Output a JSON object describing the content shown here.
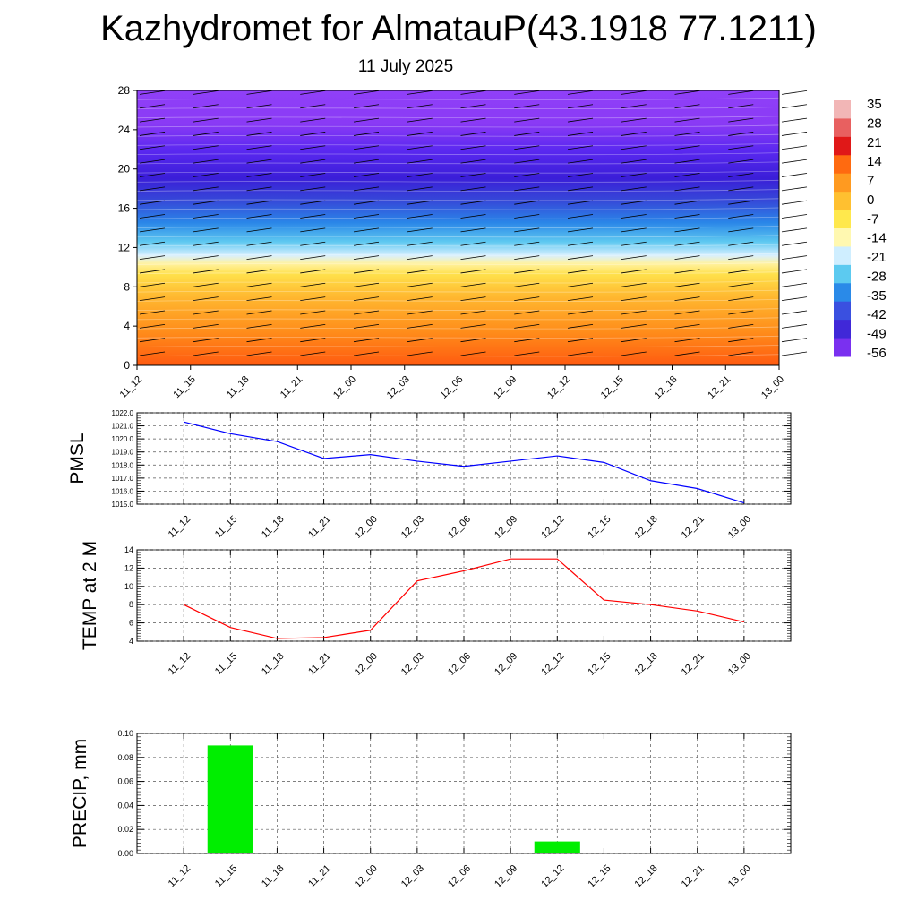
{
  "title": "Kazhydromet for AlmatauP(43.1918 77.1211)",
  "subtitle": "11 July 2025",
  "colorbar": {
    "labels": [
      "35",
      "28",
      "21",
      "14",
      "7",
      "0",
      "-7",
      "-14",
      "-21",
      "-28",
      "-35",
      "-42",
      "-49",
      "-56"
    ]
  },
  "chart_data": [
    {
      "type": "heatmap",
      "description": "time-height cross section of temperature with wind barbs",
      "x_labels": [
        "11_12",
        "11_15",
        "11_18",
        "11_21",
        "12_00",
        "12_03",
        "12_06",
        "12_09",
        "12_12",
        "12_15",
        "12_18",
        "12_21",
        "13_00"
      ],
      "y_ticks": [
        "0",
        "4",
        "8",
        "12",
        "16",
        "20",
        "24",
        "28"
      ],
      "ylim": [
        0,
        28
      ],
      "colorbar_range": [
        -56,
        35
      ]
    },
    {
      "type": "line",
      "ylabel": "PMSL",
      "x_labels": [
        "11_12",
        "11_15",
        "11_18",
        "11_21",
        "12_00",
        "12_03",
        "12_06",
        "12_09",
        "12_12",
        "12_15",
        "12_18",
        "12_21",
        "13_00"
      ],
      "y_ticks": [
        "1015.0",
        "1016.0",
        "1017.0",
        "1018.0",
        "1019.0",
        "1020.0",
        "1021.0",
        "1022.0"
      ],
      "ylim": [
        1015,
        1022
      ],
      "series": [
        {
          "values": [
            1021.3,
            1020.4,
            1019.8,
            1018.5,
            1018.8,
            1018.3,
            1017.9,
            1018.3,
            1018.7,
            1018.2,
            1016.8,
            1016.2,
            1015.1
          ],
          "color": "#0000ff"
        }
      ]
    },
    {
      "type": "line",
      "ylabel": "TEMP at 2 M",
      "x_labels": [
        "11_12",
        "11_15",
        "11_18",
        "11_21",
        "12_00",
        "12_03",
        "12_06",
        "12_09",
        "12_12",
        "12_15",
        "12_18",
        "12_21",
        "13_00"
      ],
      "y_ticks": [
        "4",
        "6",
        "8",
        "10",
        "12",
        "14"
      ],
      "ylim": [
        4,
        14
      ],
      "series": [
        {
          "values": [
            8.0,
            5.5,
            4.3,
            4.4,
            5.2,
            10.6,
            11.7,
            13.0,
            13.0,
            8.5,
            8.0,
            7.3,
            6.1
          ],
          "color": "#ff0000"
        }
      ]
    },
    {
      "type": "bar",
      "ylabel": "PRECIP, mm",
      "x_labels": [
        "11_12",
        "11_15",
        "11_18",
        "11_21",
        "12_00",
        "12_03",
        "12_06",
        "12_09",
        "12_12",
        "12_15",
        "12_18",
        "12_21",
        "13_00"
      ],
      "y_ticks": [
        "0.00",
        "0.02",
        "0.04",
        "0.06",
        "0.08",
        "0.10"
      ],
      "ylim": [
        0,
        0.1
      ],
      "values": [
        0,
        0.09,
        0,
        0,
        0,
        0,
        0,
        0,
        0.01,
        0,
        0,
        0,
        0
      ],
      "color": "#00ee00"
    }
  ]
}
